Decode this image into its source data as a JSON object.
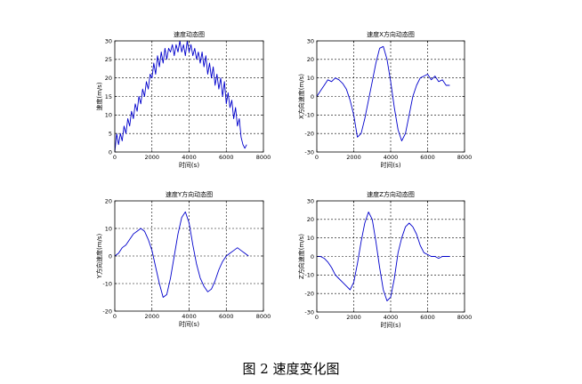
{
  "caption": "图 2   速度变化图",
  "colors": {
    "series": "#0000cc",
    "axes": "#000000",
    "grid": "#000000"
  },
  "chart_data": [
    {
      "type": "line",
      "title": "速度动态图",
      "xlabel": "时间(s)",
      "ylabel": "速度(m/s)",
      "xlim": [
        0,
        8000
      ],
      "ylim": [
        0,
        30
      ],
      "xticks": [
        0,
        2000,
        4000,
        6000,
        8000
      ],
      "yticks": [
        0,
        5,
        10,
        15,
        20,
        25,
        30
      ],
      "grid": true,
      "series": [
        {
          "x": [
            0,
            100,
            200,
            300,
            400,
            500,
            600,
            700,
            800,
            900,
            1000,
            1100,
            1200,
            1300,
            1400,
            1500,
            1600,
            1700,
            1800,
            1900,
            2000,
            2100,
            2200,
            2300,
            2400,
            2500,
            2600,
            2700,
            2800,
            2900,
            3000,
            3100,
            3200,
            3300,
            3400,
            3500,
            3600,
            3700,
            3800,
            3900,
            4000,
            4100,
            4200,
            4300,
            4400,
            4500,
            4600,
            4700,
            4800,
            4900,
            5000,
            5100,
            5200,
            5300,
            5400,
            5500,
            5600,
            5700,
            5800,
            5900,
            6000,
            6100,
            6200,
            6300,
            6400,
            6500,
            6600,
            6700,
            6800,
            6900,
            7000,
            7100
          ],
          "y": [
            0,
            5,
            2,
            5,
            3,
            7,
            5,
            9,
            7,
            11,
            9,
            13,
            11,
            15,
            13,
            17,
            15,
            19,
            17,
            21,
            20,
            24,
            21,
            26,
            23,
            27,
            24,
            28,
            25,
            28,
            27,
            29,
            26,
            29,
            27,
            30,
            27,
            29,
            26,
            30,
            27,
            29,
            26,
            28,
            25,
            27,
            24,
            27,
            23,
            26,
            21,
            24,
            20,
            23,
            18,
            21,
            17,
            20,
            15,
            19,
            13,
            16,
            12,
            14,
            9,
            12,
            7,
            9,
            4,
            2,
            1,
            2
          ]
        }
      ]
    },
    {
      "type": "line",
      "title": "速度X方向动态图",
      "xlabel": "时间(s)",
      "ylabel": "X方向速度(m/s)",
      "xlim": [
        0,
        8000
      ],
      "ylim": [
        -30,
        30
      ],
      "xticks": [
        0,
        2000,
        4000,
        6000,
        8000
      ],
      "yticks": [
        -30,
        -20,
        -10,
        0,
        10,
        20,
        30
      ],
      "grid": true,
      "series": [
        {
          "x": [
            0,
            200,
            400,
            600,
            800,
            1000,
            1200,
            1400,
            1600,
            1800,
            2000,
            2200,
            2400,
            2600,
            2800,
            3000,
            3200,
            3400,
            3600,
            3800,
            4000,
            4200,
            4400,
            4600,
            4800,
            5000,
            5200,
            5400,
            5600,
            5800,
            6000,
            6200,
            6400,
            6600,
            6800,
            7000,
            7200
          ],
          "y": [
            0,
            3,
            6,
            9,
            8,
            10,
            9,
            7,
            4,
            -2,
            -10,
            -22,
            -20,
            -12,
            -2,
            8,
            18,
            26,
            27,
            20,
            8,
            -6,
            -18,
            -24,
            -20,
            -10,
            0,
            6,
            10,
            11,
            12,
            9,
            11,
            8,
            9,
            6,
            6
          ]
        }
      ]
    },
    {
      "type": "line",
      "title": "速度Y方向动态图",
      "xlabel": "时间(s)",
      "ylabel": "Y方向速度(m/s)",
      "xlim": [
        0,
        8000
      ],
      "ylim": [
        -20,
        20
      ],
      "xticks": [
        0,
        2000,
        4000,
        6000,
        8000
      ],
      "yticks": [
        -20,
        -10,
        0,
        10,
        20
      ],
      "grid": true,
      "series": [
        {
          "x": [
            0,
            200,
            400,
            600,
            800,
            1000,
            1200,
            1400,
            1600,
            1800,
            2000,
            2200,
            2400,
            2600,
            2800,
            3000,
            3200,
            3400,
            3600,
            3800,
            4000,
            4200,
            4400,
            4600,
            4800,
            5000,
            5200,
            5400,
            5600,
            5800,
            6000,
            6200,
            6400,
            6600,
            6800,
            7000,
            7200
          ],
          "y": [
            0,
            1,
            3,
            4,
            6,
            8,
            9,
            10,
            9,
            6,
            2,
            -4,
            -10,
            -15,
            -14,
            -8,
            0,
            8,
            14,
            16,
            12,
            4,
            -3,
            -8,
            -11,
            -13,
            -12,
            -9,
            -5,
            -2,
            0,
            1,
            2,
            3,
            2,
            1,
            0
          ]
        }
      ]
    },
    {
      "type": "line",
      "title": "速度Z方向动态图",
      "xlabel": "时间(s)",
      "ylabel": "Z方向速度(m/s)",
      "xlim": [
        0,
        8000
      ],
      "ylim": [
        -30,
        30
      ],
      "xticks": [
        0,
        2000,
        4000,
        6000,
        8000
      ],
      "yticks": [
        -30,
        -20,
        -10,
        0,
        10,
        20,
        30
      ],
      "grid": true,
      "series": [
        {
          "x": [
            0,
            200,
            400,
            600,
            800,
            1000,
            1200,
            1400,
            1600,
            1800,
            2000,
            2200,
            2400,
            2600,
            2800,
            3000,
            3200,
            3400,
            3600,
            3800,
            4000,
            4200,
            4400,
            4600,
            4800,
            5000,
            5200,
            5400,
            5600,
            5800,
            6000,
            6200,
            6400,
            6600,
            6800,
            7000,
            7200
          ],
          "y": [
            0,
            0,
            -1,
            -3,
            -6,
            -10,
            -12,
            -14,
            -16,
            -18,
            -14,
            -4,
            8,
            18,
            24,
            20,
            8,
            -6,
            -18,
            -24,
            -22,
            -12,
            2,
            10,
            16,
            18,
            16,
            12,
            6,
            2,
            1,
            0,
            0,
            -1,
            0,
            0,
            0
          ]
        }
      ]
    }
  ]
}
